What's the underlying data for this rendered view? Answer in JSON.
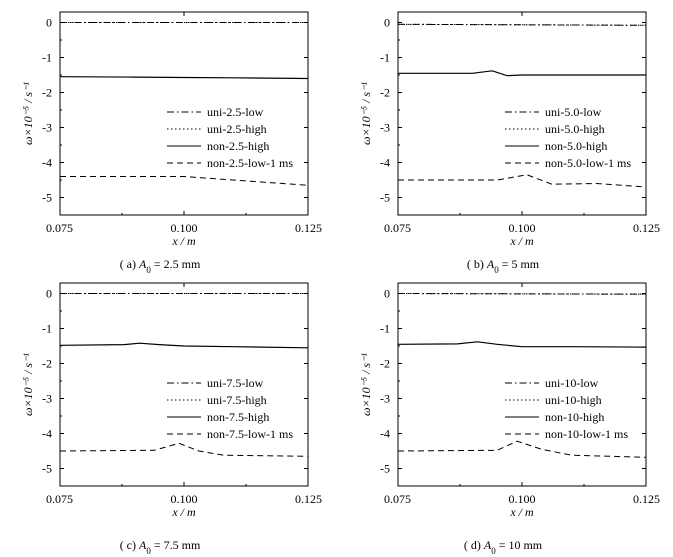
{
  "chart_data": [
    {
      "type": "line",
      "caption": {
        "prefix": "( a) ",
        "var": "A",
        "sub": "0",
        "rest": " = 2.5 mm"
      },
      "xlabel": "x / m",
      "ylabel": "ω×10⁻⁵ / s⁻¹",
      "xlim": [
        0.075,
        0.125
      ],
      "ylim": [
        -5.5,
        0.3
      ],
      "xticks": [
        "0.075",
        "0.100",
        "0.125"
      ],
      "yticks": [
        "0",
        "-1",
        "-2",
        "-3",
        "-4",
        "-5"
      ],
      "legend_position": "center",
      "series": [
        {
          "name": "uni-2.5-low",
          "style": "dashdot",
          "x": [
            0.075,
            0.125
          ],
          "y": [
            0.0,
            0.0
          ]
        },
        {
          "name": "uni-2.5-high",
          "style": "dotted",
          "x": [
            0.075,
            0.125
          ],
          "y": [
            0.0,
            0.0
          ]
        },
        {
          "name": "non-2.5-high",
          "style": "solid",
          "x": [
            0.075,
            0.09,
            0.1,
            0.11,
            0.125
          ],
          "y": [
            -1.55,
            -1.56,
            -1.57,
            -1.58,
            -1.6
          ]
        },
        {
          "name": "non-2.5-low-1 ms",
          "style": "dashed",
          "x": [
            0.075,
            0.09,
            0.1,
            0.105,
            0.115,
            0.125
          ],
          "y": [
            -4.4,
            -4.4,
            -4.4,
            -4.45,
            -4.55,
            -4.65
          ]
        }
      ]
    },
    {
      "type": "line",
      "caption": {
        "prefix": "( b) ",
        "var": "A",
        "sub": "0",
        "rest": " = 5 mm"
      },
      "xlabel": "x / m",
      "ylabel": "ω×10⁻⁵ / s⁻¹",
      "xlim": [
        0.075,
        0.125
      ],
      "ylim": [
        -5.5,
        0.3
      ],
      "xticks": [
        "0.075",
        "0.100",
        "0.125"
      ],
      "yticks": [
        "0",
        "-1",
        "-2",
        "-3",
        "-4",
        "-5"
      ],
      "legend_position": "center",
      "series": [
        {
          "name": "uni-5.0-low",
          "style": "dashdot",
          "x": [
            0.075,
            0.125
          ],
          "y": [
            -0.05,
            -0.08
          ]
        },
        {
          "name": "uni-5.0-high",
          "style": "dotted",
          "x": [
            0.075,
            0.125
          ],
          "y": [
            -0.05,
            -0.08
          ]
        },
        {
          "name": "non-5.0-high",
          "style": "solid",
          "x": [
            0.075,
            0.09,
            0.094,
            0.097,
            0.1,
            0.11,
            0.125
          ],
          "y": [
            -1.45,
            -1.45,
            -1.38,
            -1.52,
            -1.5,
            -1.5,
            -1.5
          ]
        },
        {
          "name": "non-5.0-low-1 ms",
          "style": "dashed",
          "x": [
            0.075,
            0.095,
            0.101,
            0.106,
            0.115,
            0.125
          ],
          "y": [
            -4.5,
            -4.5,
            -4.35,
            -4.62,
            -4.6,
            -4.7
          ]
        }
      ]
    },
    {
      "type": "line",
      "caption": {
        "prefix": "( c) ",
        "var": "A",
        "sub": "0",
        "rest": " = 7.5 mm"
      },
      "xlabel": "x / m",
      "ylabel": "ω×10⁻⁵ / s⁻¹",
      "xlim": [
        0.075,
        0.125
      ],
      "ylim": [
        -5.5,
        0.3
      ],
      "xticks": [
        "0.075",
        "0.100",
        "0.125"
      ],
      "yticks": [
        "0",
        "-1",
        "-2",
        "-3",
        "-4",
        "-5"
      ],
      "legend_position": "center",
      "series": [
        {
          "name": "uni-7.5-low",
          "style": "dashdot",
          "x": [
            0.075,
            0.125
          ],
          "y": [
            0.0,
            0.0
          ]
        },
        {
          "name": "uni-7.5-high",
          "style": "dotted",
          "x": [
            0.075,
            0.125
          ],
          "y": [
            0.0,
            0.0
          ]
        },
        {
          "name": "non-7.5-high",
          "style": "solid",
          "x": [
            0.075,
            0.088,
            0.091,
            0.095,
            0.1,
            0.11,
            0.125
          ],
          "y": [
            -1.48,
            -1.46,
            -1.42,
            -1.46,
            -1.5,
            -1.52,
            -1.55
          ]
        },
        {
          "name": "non-7.5-low-1 ms",
          "style": "dashed",
          "x": [
            0.075,
            0.094,
            0.099,
            0.103,
            0.108,
            0.125
          ],
          "y": [
            -4.5,
            -4.48,
            -4.28,
            -4.5,
            -4.62,
            -4.65
          ]
        }
      ]
    },
    {
      "type": "line",
      "caption": {
        "prefix": "( d) ",
        "var": "A",
        "sub": "0",
        "rest": " = 10 mm"
      },
      "xlabel": "x / m",
      "ylabel": "ω×10⁻⁵ / s⁻¹",
      "xlim": [
        0.075,
        0.125
      ],
      "ylim": [
        -5.5,
        0.3
      ],
      "xticks": [
        "0.075",
        "0.100",
        "0.125"
      ],
      "yticks": [
        "0",
        "-1",
        "-2",
        "-3",
        "-4",
        "-5"
      ],
      "legend_position": "center",
      "series": [
        {
          "name": "uni-10-low",
          "style": "dashdot",
          "x": [
            0.075,
            0.125
          ],
          "y": [
            0.0,
            -0.02
          ]
        },
        {
          "name": "uni-10-high",
          "style": "dotted",
          "x": [
            0.075,
            0.125
          ],
          "y": [
            0.0,
            -0.02
          ]
        },
        {
          "name": "non-10-high",
          "style": "solid",
          "x": [
            0.075,
            0.087,
            0.091,
            0.095,
            0.1,
            0.11,
            0.125
          ],
          "y": [
            -1.45,
            -1.44,
            -1.38,
            -1.45,
            -1.52,
            -1.52,
            -1.53
          ]
        },
        {
          "name": "non-10-low-1 ms",
          "style": "dashed",
          "x": [
            0.075,
            0.095,
            0.099,
            0.104,
            0.11,
            0.125
          ],
          "y": [
            -4.5,
            -4.48,
            -4.22,
            -4.45,
            -4.62,
            -4.68
          ]
        }
      ]
    }
  ]
}
